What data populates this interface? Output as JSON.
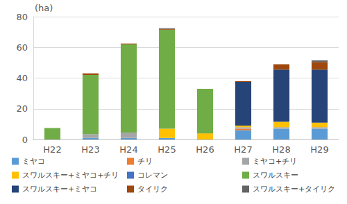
{
  "chart_data": {
    "type": "bar",
    "stacked": true,
    "grid": true,
    "legend": "bottom",
    "y_label": "(ha)",
    "categories": [
      "H22",
      "H23",
      "H24",
      "H25",
      "H26",
      "H27",
      "H28",
      "H29"
    ],
    "ylim": [
      0,
      80
    ],
    "yticks": [
      0,
      20,
      40,
      60,
      80
    ],
    "series": [
      {
        "name": "ミヤコ",
        "color": "#5B9BD5",
        "values": [
          0,
          1,
          1,
          1,
          0,
          6,
          7,
          7
        ]
      },
      {
        "name": "チリ",
        "color": "#ED7D31",
        "values": [
          0,
          0,
          0,
          0,
          0,
          1,
          0,
          0
        ]
      },
      {
        "name": "ミヤコ+チリ",
        "color": "#A5A5A5",
        "values": [
          0,
          2.5,
          3.5,
          0,
          0,
          1,
          1,
          1
        ]
      },
      {
        "name": "スワルスキー+ミヤコ+チリ",
        "color": "#FFC000",
        "values": [
          0,
          0,
          0,
          6,
          4,
          1,
          3.5,
          3
        ]
      },
      {
        "name": "コレマン",
        "color": "#4472C4",
        "values": [
          0,
          0,
          0,
          0,
          0,
          0,
          0,
          0
        ]
      },
      {
        "name": "スワルスキー",
        "color": "#70AD47",
        "values": [
          7.5,
          38.5,
          57.5,
          64.5,
          29,
          0,
          0,
          0
        ]
      },
      {
        "name": "スワルスキー+ミヤコ",
        "color": "#264478",
        "values": [
          0,
          0,
          0,
          0,
          0,
          28.5,
          34,
          34.5
        ]
      },
      {
        "name": "タイリク",
        "color": "#9E480E",
        "values": [
          0,
          1,
          0.5,
          0.5,
          0,
          0.5,
          3.5,
          5
        ]
      },
      {
        "name": "スワルスキー+タイリク",
        "color": "#636363",
        "values": [
          0,
          0,
          0,
          0.5,
          0,
          0,
          0,
          1
        ]
      }
    ]
  }
}
